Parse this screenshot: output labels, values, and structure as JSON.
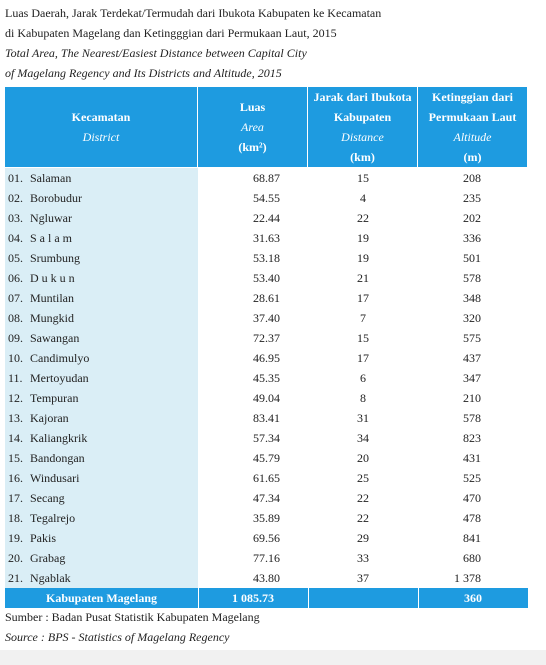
{
  "title": {
    "line1": "Luas Daerah, Jarak Terdekat/Termudah dari Ibukota Kabupaten ke Kecamatan",
    "line2": "di Kabupaten Magelang dan Ketingggian dari Permukaan Laut, 2015",
    "line3": "Total Area, The Nearest/Easiest Distance between Capital City",
    "line4": "of Magelang Regency and Its Districts and Altitude, 2015"
  },
  "table": {
    "header": [
      [
        "Kecamatan",
        "District"
      ],
      [
        "Luas",
        "Area",
        "(km²)"
      ],
      [
        "Jarak dari Ibukota",
        "Kabupaten",
        "Distance",
        "(km)"
      ],
      [
        "Ketinggian dari",
        "Permukaan Laut",
        "Altitude",
        "(m)"
      ]
    ],
    "rows": [
      [
        "01.",
        "Salaman",
        "68.87",
        "15",
        "208"
      ],
      [
        "02.",
        "Borobudur",
        "54.55",
        "4",
        "235"
      ],
      [
        "03.",
        "Ngluwar",
        "22.44",
        "22",
        "202"
      ],
      [
        "04.",
        "S a l a m",
        "31.63",
        "19",
        "336"
      ],
      [
        "05.",
        "Srumbung",
        "53.18",
        "19",
        "501"
      ],
      [
        "06.",
        "D u k u n",
        "53.40",
        "21",
        "578"
      ],
      [
        "07.",
        "Muntilan",
        "28.61",
        "17",
        "348"
      ],
      [
        "08.",
        "Mungkid",
        "37.40",
        "7",
        "320"
      ],
      [
        "09.",
        "Sawangan",
        "72.37",
        "15",
        "575"
      ],
      [
        "10.",
        "Candimulyo",
        "46.95",
        "17",
        "437"
      ],
      [
        "11.",
        "Mertoyudan",
        "45.35",
        "6",
        "347"
      ],
      [
        "12.",
        "Tempuran",
        "49.04",
        "8",
        "210"
      ],
      [
        "13.",
        "Kajoran",
        "83.41",
        "31",
        "578"
      ],
      [
        "14.",
        "Kaliangkrik",
        "57.34",
        "34",
        "823"
      ],
      [
        "15.",
        "Bandongan",
        "45.79",
        "20",
        "431"
      ],
      [
        "16.",
        "Windusari",
        "61.65",
        "25",
        "525"
      ],
      [
        "17.",
        "Secang",
        "47.34",
        "22",
        "470"
      ],
      [
        "18.",
        "Tegalrejo",
        "35.89",
        "22",
        "478"
      ],
      [
        "19.",
        "Pakis",
        "69.56",
        "29",
        "841"
      ],
      [
        "20.",
        "Grabag",
        "77.16",
        "33",
        "680"
      ],
      [
        "21.",
        "Ngablak",
        "43.80",
        "37",
        "1 378"
      ]
    ],
    "total": [
      "Kabupaten Magelang",
      "1 085.73",
      "360"
    ]
  },
  "source": {
    "line1": "Sumber : Badan Pusat Statistik Kabupaten Magelang",
    "line2": "Source : BPS - Statistics of Magelang Regency"
  }
}
